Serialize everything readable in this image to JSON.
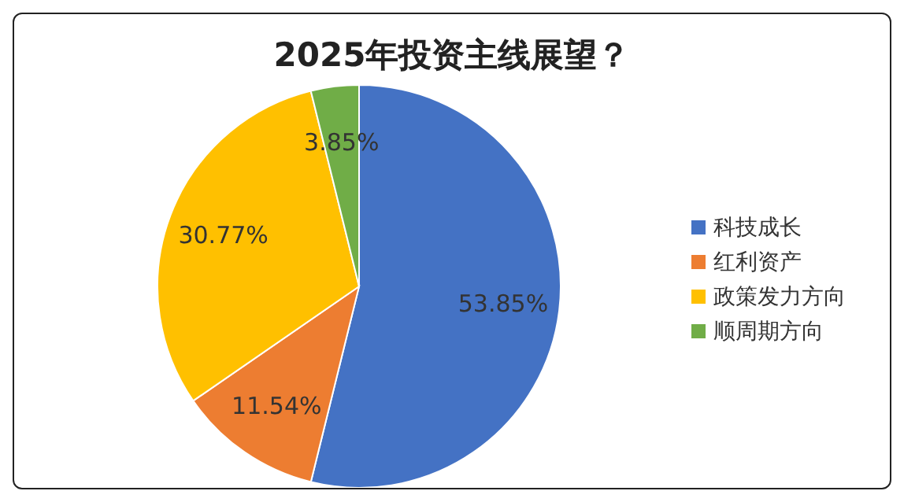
{
  "chart_data": {
    "type": "pie",
    "title": "2025年投资主线展望？",
    "categories": [
      "科技成长",
      "红利资产",
      "政策发力方向",
      "顺周期方向"
    ],
    "values": [
      53.85,
      11.54,
      30.77,
      3.85
    ],
    "colors": [
      "#4472c4",
      "#ed7d31",
      "#ffc000",
      "#70ad47"
    ],
    "value_labels": [
      "53.85%",
      "11.54%",
      "30.77%",
      "3.85%"
    ],
    "legend": "right"
  }
}
